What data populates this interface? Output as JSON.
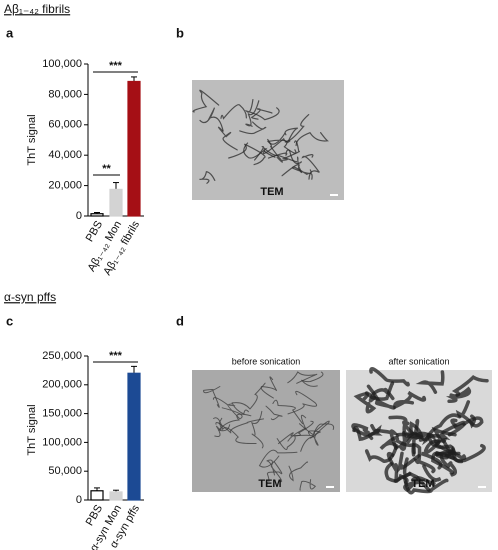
{
  "panels": [
    "a",
    "b",
    "c",
    "d"
  ],
  "chart_data": [
    {
      "type": "bar",
      "title": "Aβ₁₋₄₂ fibrils",
      "ylabel": "ThT signal",
      "categories": [
        "PBS",
        "Aβ₁₋₄₂ Mon",
        "Aβ₁₋₄₂ fibrils"
      ],
      "values": [
        1500,
        17500,
        88500
      ],
      "errors": [
        800,
        4500,
        3000
      ],
      "colors": [
        "#ffffff",
        "#d3d3d3",
        "#a50f15"
      ],
      "ylim": [
        0,
        100000
      ],
      "yticks": [
        0,
        {
          "value": 20000,
          "label": "20,000"
        },
        {
          "value": 40000,
          "label": "40,000"
        },
        {
          "value": 60000,
          "label": "60,000"
        },
        {
          "value": 80000,
          "label": "80,000"
        },
        {
          "value": 100000,
          "label": "100,000"
        }
      ],
      "annotations": [
        {
          "text": "***"
        },
        {
          "text": "**"
        }
      ]
    },
    {
      "type": "bar",
      "title": "α-syn pffs",
      "ylabel": "ThT signal",
      "categories": [
        "PBS",
        "α-syn Mon",
        "α-syn pffs"
      ],
      "values": [
        16000,
        14000,
        220000
      ],
      "errors": [
        5000,
        3000,
        12000
      ],
      "colors": [
        "#ffffff",
        "#d3d3d3",
        "#1c4a94"
      ],
      "ylim": [
        0,
        250000
      ],
      "yticks": [
        0,
        {
          "value": 50000,
          "label": "50,000"
        },
        {
          "value": 100000,
          "label": "100,000"
        },
        {
          "value": 150000,
          "label": "150,000"
        },
        {
          "value": 200000,
          "label": "200,000"
        },
        {
          "value": 250000,
          "label": "250,000"
        }
      ],
      "annotations": [
        {
          "text": "***"
        }
      ]
    }
  ],
  "images": [
    {
      "caption": "TEM"
    },
    {
      "heading": "before sonication",
      "caption": "TEM"
    },
    {
      "heading": "after sonication",
      "caption": "TEM"
    }
  ]
}
